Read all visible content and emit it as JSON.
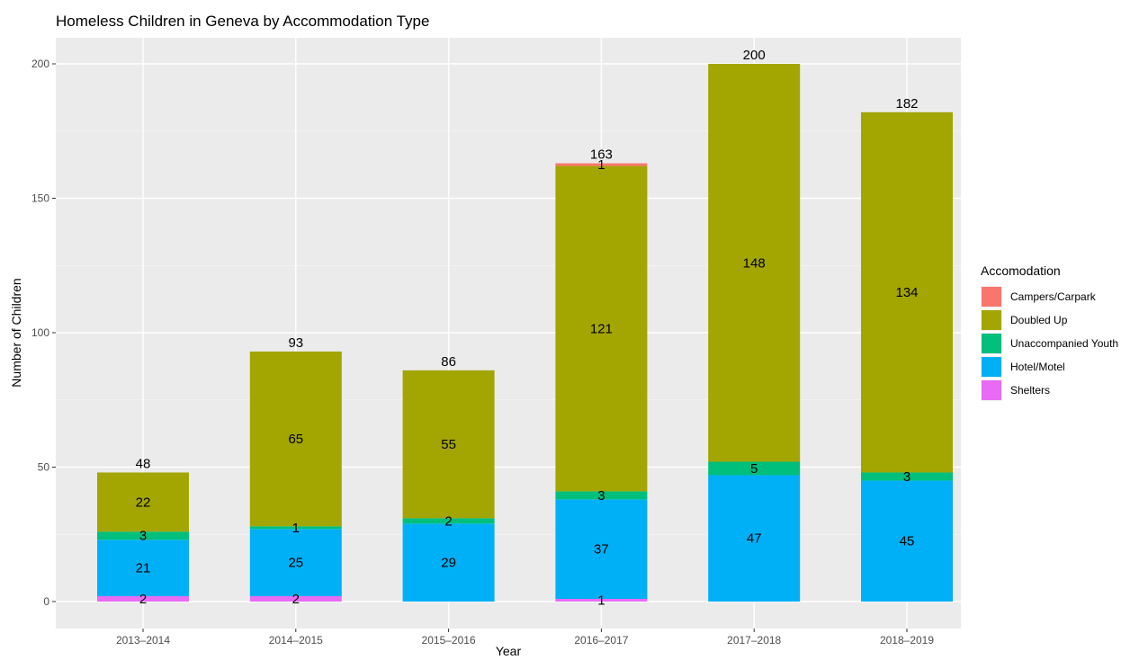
{
  "chart_data": {
    "type": "bar",
    "stacked": true,
    "title": "Homeless Children in Geneva by Accommodation Type",
    "xlabel": "Year",
    "ylabel": "Number of Children",
    "ylim": [
      0,
      200
    ],
    "y_ticks": [
      0,
      50,
      100,
      150,
      200
    ],
    "grid": true,
    "legend_position": "right",
    "legend_title": "Accomodation",
    "categories": [
      "2013–2014",
      "2014–2015",
      "2015–2016",
      "2016–2017",
      "2017–2018",
      "2018–2019"
    ],
    "series": [
      {
        "name": "Shelters",
        "color": "#e76bf3",
        "values": [
          2,
          2,
          0,
          1,
          0,
          0
        ],
        "labels": [
          "2",
          "2",
          "",
          "1",
          "",
          ""
        ]
      },
      {
        "name": "Hotel/Motel",
        "color": "#00b0f6",
        "values": [
          21,
          25,
          29,
          37,
          47,
          45
        ],
        "labels": [
          "21",
          "25",
          "29",
          "37",
          "47",
          "45"
        ]
      },
      {
        "name": "Unaccompanied Youth",
        "color": "#00bf7d",
        "values": [
          3,
          1,
          2,
          3,
          5,
          3
        ],
        "labels": [
          "3",
          "1",
          "2",
          "3",
          "5",
          "3"
        ]
      },
      {
        "name": "Doubled Up",
        "color": "#a3a500",
        "values": [
          22,
          65,
          55,
          121,
          148,
          134
        ],
        "labels": [
          "22",
          "65",
          "55",
          "121",
          "148",
          "134"
        ]
      },
      {
        "name": "Campers/Carpark",
        "color": "#f8766d",
        "values": [
          0,
          0,
          0,
          1,
          0,
          0
        ],
        "labels": [
          "",
          "",
          "",
          "1",
          "",
          ""
        ]
      }
    ],
    "legend_order": [
      "Campers/Carpark",
      "Doubled Up",
      "Unaccompanied Youth",
      "Hotel/Motel",
      "Shelters"
    ],
    "totals": [
      48,
      93,
      86,
      163,
      200,
      182
    ]
  }
}
